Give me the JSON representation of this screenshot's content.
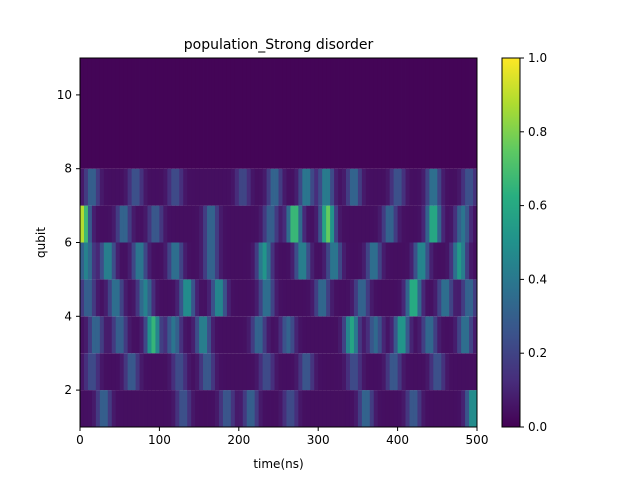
{
  "chart_data": {
    "type": "heatmap",
    "title": "population_Strong disorder",
    "xlabel": "time(ns)",
    "ylabel": "qubit",
    "xlim": [
      0,
      500
    ],
    "ylim": [
      1,
      11
    ],
    "x_ticks": [
      0,
      100,
      200,
      300,
      400,
      500
    ],
    "y_ticks": [
      2,
      4,
      6,
      8,
      10
    ],
    "colormap": "viridis",
    "colorbar": {
      "min": 0.0,
      "max": 1.0,
      "ticks": [
        "0.0",
        "0.2",
        "0.4",
        "0.6",
        "0.8",
        "1.0"
      ]
    },
    "grid": false,
    "rows": [
      {
        "qubit_range": [
          1,
          2
        ],
        "peaks": [
          [
            30,
            0.28
          ],
          [
            130,
            0.22
          ],
          [
            185,
            0.24
          ],
          [
            215,
            0.28
          ],
          [
            265,
            0.2
          ],
          [
            360,
            0.3
          ],
          [
            420,
            0.25
          ],
          [
            495,
            0.48
          ]
        ]
      },
      {
        "qubit_range": [
          2,
          3
        ],
        "peaks": [
          [
            15,
            0.2
          ],
          [
            65,
            0.26
          ],
          [
            125,
            0.2
          ],
          [
            160,
            0.25
          ],
          [
            235,
            0.2
          ],
          [
            285,
            0.24
          ],
          [
            345,
            0.2
          ],
          [
            395,
            0.25
          ],
          [
            450,
            0.22
          ]
        ]
      },
      {
        "qubit_range": [
          3,
          4
        ],
        "peaks": [
          [
            20,
            0.3
          ],
          [
            50,
            0.28
          ],
          [
            92,
            0.62
          ],
          [
            118,
            0.35
          ],
          [
            155,
            0.42
          ],
          [
            225,
            0.3
          ],
          [
            262,
            0.28
          ],
          [
            342,
            0.55
          ],
          [
            372,
            0.3
          ],
          [
            405,
            0.52
          ],
          [
            440,
            0.32
          ],
          [
            485,
            0.35
          ]
        ]
      },
      {
        "qubit_range": [
          4,
          5
        ],
        "peaks": [
          [
            10,
            0.28
          ],
          [
            45,
            0.35
          ],
          [
            82,
            0.4
          ],
          [
            135,
            0.48
          ],
          [
            175,
            0.45
          ],
          [
            235,
            0.35
          ],
          [
            305,
            0.32
          ],
          [
            355,
            0.3
          ],
          [
            420,
            0.62
          ],
          [
            460,
            0.35
          ],
          [
            490,
            0.3
          ]
        ]
      },
      {
        "qubit_range": [
          5,
          6
        ],
        "peaks": [
          [
            8,
            0.4
          ],
          [
            35,
            0.42
          ],
          [
            75,
            0.38
          ],
          [
            120,
            0.35
          ],
          [
            165,
            0.3
          ],
          [
            232,
            0.48
          ],
          [
            280,
            0.42
          ],
          [
            320,
            0.38
          ],
          [
            370,
            0.35
          ],
          [
            430,
            0.45
          ],
          [
            478,
            0.5
          ]
        ]
      },
      {
        "qubit_range": [
          6,
          7
        ],
        "peaks": [
          [
            3,
            0.85
          ],
          [
            55,
            0.3
          ],
          [
            95,
            0.25
          ],
          [
            165,
            0.3
          ],
          [
            240,
            0.28
          ],
          [
            270,
            0.68
          ],
          [
            312,
            0.72
          ],
          [
            390,
            0.3
          ],
          [
            445,
            0.6
          ],
          [
            482,
            0.35
          ]
        ]
      },
      {
        "qubit_range": [
          7,
          8
        ],
        "peaks": [
          [
            15,
            0.28
          ],
          [
            70,
            0.22
          ],
          [
            120,
            0.2
          ],
          [
            205,
            0.18
          ],
          [
            245,
            0.3
          ],
          [
            285,
            0.38
          ],
          [
            310,
            0.4
          ],
          [
            345,
            0.3
          ],
          [
            400,
            0.22
          ],
          [
            445,
            0.35
          ],
          [
            490,
            0.22
          ]
        ]
      },
      {
        "qubit_range": [
          8,
          11
        ],
        "peaks": []
      }
    ]
  }
}
